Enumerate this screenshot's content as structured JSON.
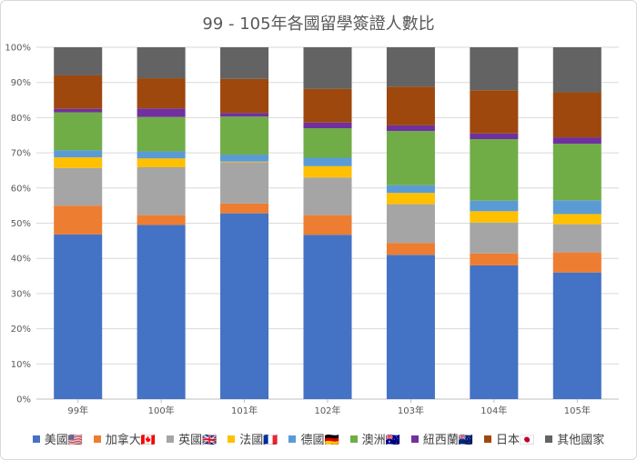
{
  "chart_data": {
    "type": "bar",
    "stacked": true,
    "percent_stacked": true,
    "title": "99 - 105年各國留學簽證人數比",
    "categories": [
      "99年",
      "100年",
      "101年",
      "102年",
      "103年",
      "104年",
      "105年"
    ],
    "ylim": [
      0,
      100
    ],
    "yticks": [
      "0%",
      "10%",
      "20%",
      "30%",
      "40%",
      "50%",
      "60%",
      "70%",
      "80%",
      "90%",
      "100%"
    ],
    "grid": true,
    "legend_position": "bottom",
    "series": [
      {
        "name": "美國🇺🇸",
        "color": "#4472c4",
        "values": [
          46.8,
          49.5,
          52.8,
          46.7,
          41.0,
          38.0,
          36.0
        ]
      },
      {
        "name": "加拿大🇨🇦",
        "color": "#ed7d31",
        "values": [
          8.2,
          2.8,
          2.8,
          5.6,
          3.4,
          3.4,
          5.7
        ]
      },
      {
        "name": "英國🇬🇧",
        "color": "#a5a5a5",
        "values": [
          10.7,
          13.6,
          11.7,
          10.7,
          11.0,
          8.8,
          8.0
        ]
      },
      {
        "name": "法國🇫🇷",
        "color": "#ffc000",
        "values": [
          3.0,
          2.5,
          0.2,
          3.2,
          3.2,
          3.2,
          2.9
        ]
      },
      {
        "name": "德國🇩🇪",
        "color": "#5b9bd5",
        "values": [
          2.0,
          2.0,
          2.0,
          2.4,
          2.2,
          3.0,
          3.9
        ]
      },
      {
        "name": "澳洲🇦🇺",
        "color": "#70ad47",
        "values": [
          10.8,
          9.8,
          10.8,
          8.4,
          15.4,
          17.5,
          16.1
        ]
      },
      {
        "name": "紐西蘭🇳🇿",
        "color": "#7030a0",
        "values": [
          1.0,
          2.4,
          1.0,
          1.6,
          1.6,
          1.6,
          1.8
        ]
      },
      {
        "name": "日本🇯🇵",
        "color": "#9e480e",
        "values": [
          9.5,
          8.6,
          9.7,
          9.6,
          11.0,
          12.3,
          12.8
        ]
      },
      {
        "name": "其他國家",
        "color": "#636363",
        "values": [
          8.0,
          8.8,
          9.0,
          11.8,
          11.2,
          12.2,
          12.8
        ]
      }
    ]
  }
}
